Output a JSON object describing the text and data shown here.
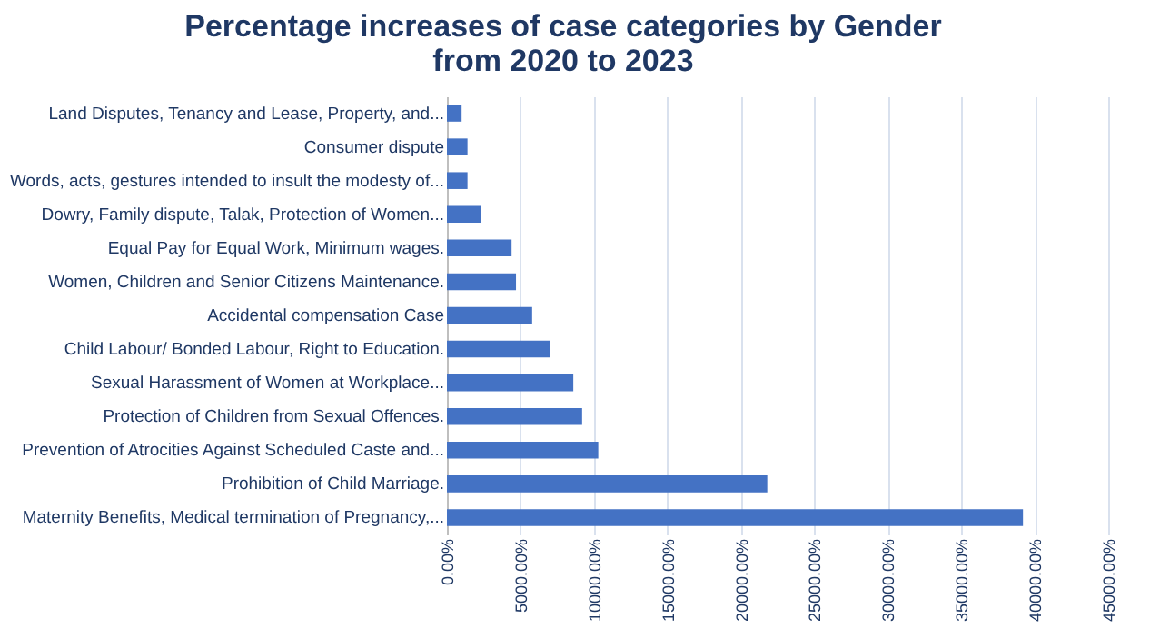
{
  "chart_data": {
    "type": "bar",
    "orientation": "horizontal",
    "title": "Percentage increases of case categories by Gender from 2020 to 2023",
    "categories": [
      "Land Disputes, Tenancy and Lease, Property, and...",
      "Consumer dispute",
      "Words, acts, gestures intended to insult the modesty of...",
      "Dowry, Family dispute, Talak, Protection of Women...",
      "Equal Pay for Equal Work, Minimum wages.",
      "Women, Children and Senior Citizens Maintenance.",
      "Accidental compensation Case",
      "Child Labour/ Bonded Labour, Right to Education.",
      "Sexual Harassment of Women at Workplace...",
      "Protection of Children from Sexual Offences.",
      "Prevention of Atrocities Against Scheduled Caste and...",
      "Prohibition of Child Marriage.",
      "Maternity Benefits, Medical termination of Pregnancy,..."
    ],
    "values": [
      1000,
      1400,
      1400,
      2300,
      4400,
      4700,
      5800,
      7000,
      8600,
      9200,
      10300,
      21800,
      39200
    ],
    "color": "#4472c4",
    "xlim": [
      0,
      45000
    ],
    "xticks": [
      {
        "value": 0,
        "label": "0.00%"
      },
      {
        "value": 5000,
        "label": "5000.00%"
      },
      {
        "value": 10000,
        "label": "10000.00%"
      },
      {
        "value": 15000,
        "label": "15000.00%"
      },
      {
        "value": 20000,
        "label": "20000.00%"
      },
      {
        "value": 25000,
        "label": "25000.00%"
      },
      {
        "value": 30000,
        "label": "30000.00%"
      },
      {
        "value": 35000,
        "label": "35000.00%"
      },
      {
        "value": 40000,
        "label": "40000.00%"
      },
      {
        "value": 45000,
        "label": "45000.00%"
      }
    ],
    "grid": "x"
  }
}
